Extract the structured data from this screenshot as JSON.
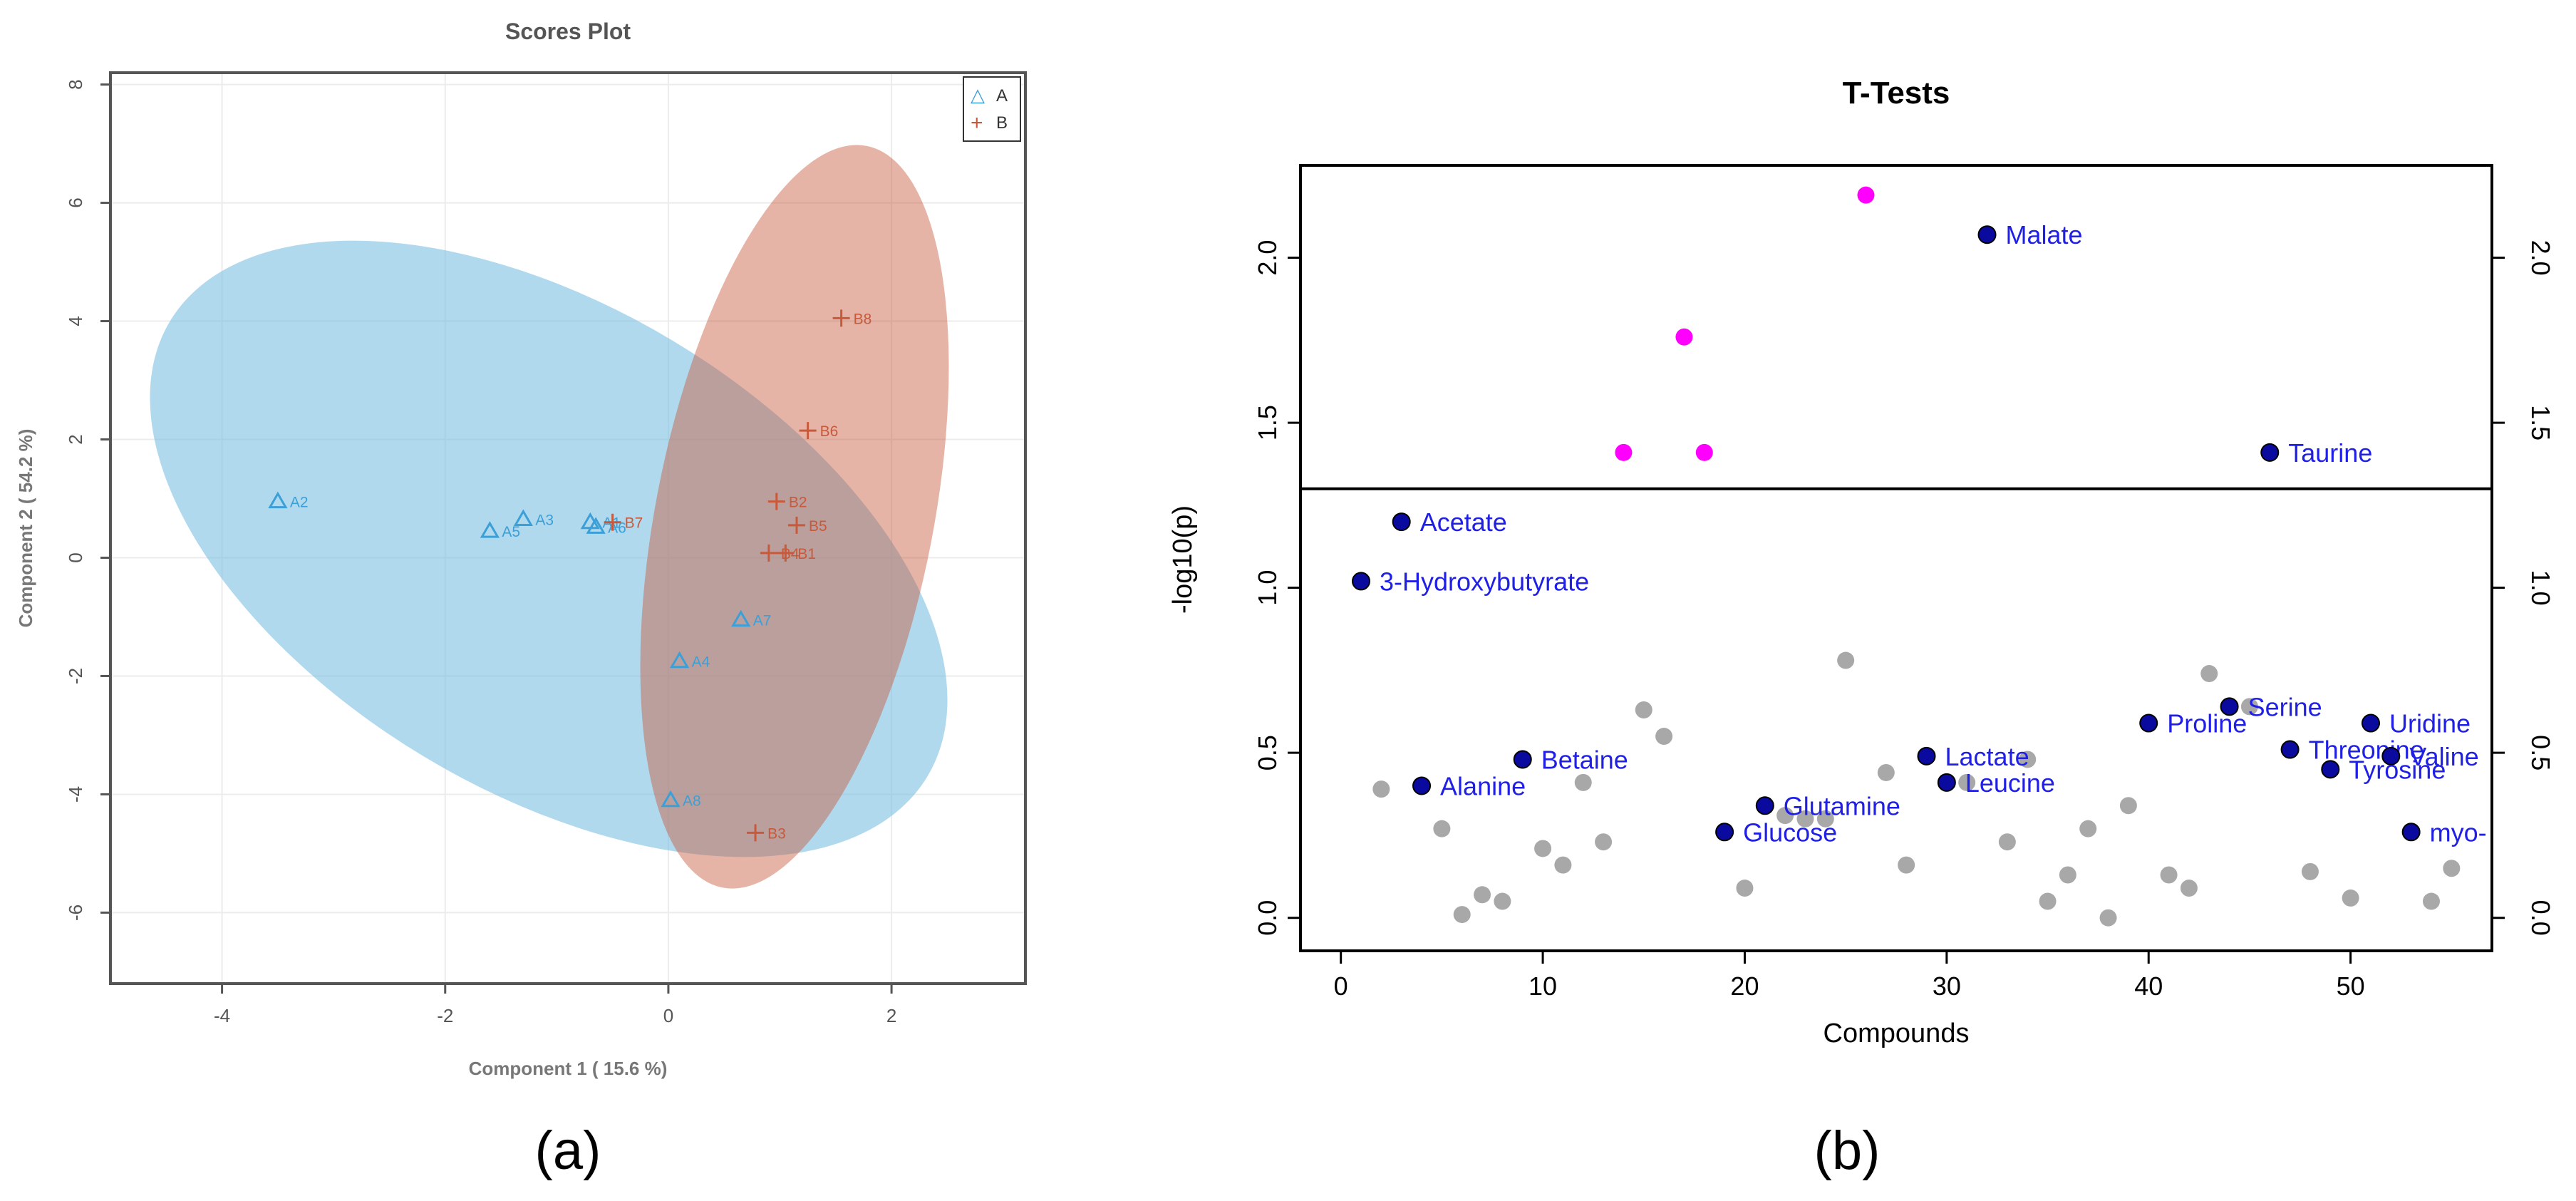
{
  "panel_labels": {
    "a": "(a)",
    "b": "(b)"
  },
  "colors": {
    "group_a": "#3b9fd8",
    "group_b": "#c8593a",
    "ellipse_a": "#7cc0e3",
    "ellipse_b": "#d8a08c",
    "pvalue_named": "#0a0a9e",
    "pvalue_label": "#1f1fe6",
    "pvalue_highlight": "#ff00ff",
    "pvalue_other": "#a8a8a8"
  },
  "chart_data": [
    {
      "type": "scatter",
      "title": "Scores Plot",
      "xlabel": "Component 1 ( 15.6 %)",
      "ylabel": "Component 2 ( 54.2 %)",
      "xlim": [
        -5,
        3.2
      ],
      "ylim": [
        -7.2,
        8.2
      ],
      "xticks": [
        -4,
        -2,
        0,
        2
      ],
      "yticks": [
        -6,
        -4,
        -2,
        0,
        2,
        4,
        6,
        8
      ],
      "grid": true,
      "legend": {
        "position": "top-right",
        "entries": [
          {
            "symbol": "△",
            "label": "A"
          },
          {
            "symbol": "+",
            "label": "B"
          }
        ]
      },
      "series": [
        {
          "name": "A",
          "marker": "triangle",
          "points": [
            {
              "label": "A2",
              "x": -3.5,
              "y": 0.95
            },
            {
              "label": "A5",
              "x": -1.6,
              "y": 0.45
            },
            {
              "label": "A3",
              "x": -1.3,
              "y": 0.65
            },
            {
              "label": "A1",
              "x": -0.7,
              "y": 0.6
            },
            {
              "label": "A6",
              "x": -0.65,
              "y": 0.52
            },
            {
              "label": "A7",
              "x": 0.65,
              "y": -1.05
            },
            {
              "label": "A4",
              "x": 0.1,
              "y": -1.75
            },
            {
              "label": "A8",
              "x": 0.02,
              "y": -4.1
            }
          ]
        },
        {
          "name": "B",
          "marker": "plus",
          "points": [
            {
              "label": "B8",
              "x": 1.55,
              "y": 4.05
            },
            {
              "label": "B6",
              "x": 1.25,
              "y": 2.15
            },
            {
              "label": "B2",
              "x": 0.97,
              "y": 0.95
            },
            {
              "label": "B5",
              "x": 1.15,
              "y": 0.55
            },
            {
              "label": "B7",
              "x": -0.5,
              "y": 0.6
            },
            {
              "label": "B4",
              "x": 0.9,
              "y": 0.08
            },
            {
              "label": "B1",
              "x": 1.05,
              "y": 0.08
            },
            {
              "label": "B3",
              "x": 0.78,
              "y": -4.65
            }
          ]
        }
      ]
    },
    {
      "type": "scatter",
      "title": "T-Tests",
      "xlabel": "Compounds",
      "ylabel": "-log10(p)",
      "xlim": [
        -2,
        57
      ],
      "ylim": [
        -0.1,
        2.28
      ],
      "xticks": [
        0,
        10,
        20,
        30,
        40,
        50
      ],
      "yticks": [
        0.0,
        0.5,
        1.0,
        1.5,
        2.0
      ],
      "threshold": 1.3,
      "grid": false,
      "named_points": [
        {
          "label": "Malate",
          "x": 32,
          "y": 2.07
        },
        {
          "label": "Taurine",
          "x": 46,
          "y": 1.41
        },
        {
          "label": "Acetate",
          "x": 3,
          "y": 1.2
        },
        {
          "label": "3-Hydroxybutyrate",
          "x": 1,
          "y": 1.02
        },
        {
          "label": "Serine",
          "x": 44,
          "y": 0.64
        },
        {
          "label": "Proline",
          "x": 40,
          "y": 0.59
        },
        {
          "label": "Uridine",
          "x": 51,
          "y": 0.59
        },
        {
          "label": "Threonine",
          "x": 47,
          "y": 0.51
        },
        {
          "label": "Valine",
          "x": 52,
          "y": 0.49
        },
        {
          "label": "Lactate",
          "x": 29,
          "y": 0.49
        },
        {
          "label": "Betaine",
          "x": 9,
          "y": 0.48
        },
        {
          "label": "Tyrosine",
          "x": 49,
          "y": 0.45
        },
        {
          "label": "Leucine",
          "x": 30,
          "y": 0.41
        },
        {
          "label": "Alanine",
          "x": 4,
          "y": 0.4
        },
        {
          "label": "Glutamine",
          "x": 21,
          "y": 0.34
        },
        {
          "label": "Glucose",
          "x": 19,
          "y": 0.26
        },
        {
          "label": "myo-",
          "x": 53,
          "y": 0.26
        }
      ],
      "highlight_points": [
        {
          "x": 26,
          "y": 2.19
        },
        {
          "x": 17,
          "y": 1.76
        },
        {
          "x": 14,
          "y": 1.41
        },
        {
          "x": 18,
          "y": 1.41
        }
      ],
      "other_points": [
        {
          "x": 2,
          "y": 0.39
        },
        {
          "x": 5,
          "y": 0.27
        },
        {
          "x": 6,
          "y": 0.01
        },
        {
          "x": 7,
          "y": 0.07
        },
        {
          "x": 8,
          "y": 0.05
        },
        {
          "x": 10,
          "y": 0.21
        },
        {
          "x": 11,
          "y": 0.16
        },
        {
          "x": 12,
          "y": 0.41
        },
        {
          "x": 13,
          "y": 0.23
        },
        {
          "x": 15,
          "y": 0.63
        },
        {
          "x": 16,
          "y": 0.55
        },
        {
          "x": 20,
          "y": 0.09
        },
        {
          "x": 22,
          "y": 0.31
        },
        {
          "x": 23,
          "y": 0.3
        },
        {
          "x": 24,
          "y": 0.3
        },
        {
          "x": 25,
          "y": 0.78
        },
        {
          "x": 27,
          "y": 0.44
        },
        {
          "x": 28,
          "y": 0.16
        },
        {
          "x": 31,
          "y": 0.41
        },
        {
          "x": 33,
          "y": 0.23
        },
        {
          "x": 34,
          "y": 0.48
        },
        {
          "x": 35,
          "y": 0.05
        },
        {
          "x": 36,
          "y": 0.13
        },
        {
          "x": 37,
          "y": 0.27
        },
        {
          "x": 38,
          "y": 0.0
        },
        {
          "x": 39,
          "y": 0.34
        },
        {
          "x": 41,
          "y": 0.13
        },
        {
          "x": 42,
          "y": 0.09
        },
        {
          "x": 43,
          "y": 0.74
        },
        {
          "x": 45,
          "y": 0.64
        },
        {
          "x": 48,
          "y": 0.14
        },
        {
          "x": 50,
          "y": 0.06
        },
        {
          "x": 54,
          "y": 0.05
        },
        {
          "x": 55,
          "y": 0.15
        }
      ]
    }
  ]
}
